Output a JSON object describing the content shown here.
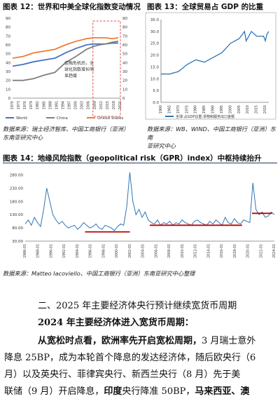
{
  "fig12": {
    "title": "图表 12：世界和中美全球化指数变动情况",
    "annotation": [
      "金融危机后，全",
      "球化指数增长明",
      "显趋缓"
    ],
    "legend": [
      "World",
      "China",
      "United States"
    ],
    "source": [
      "数据来源：瑞士经济智库、中国工商银行（亚洲）",
      "东南亚研究中心"
    ]
  },
  "fig13": {
    "title": "图表 13：全球贸易占 GDP 的比重",
    "legend_label": "全球:占GDP比重:货物和服务出口金额",
    "source": [
      "数据来源：WB、WIND、中国工商银行（亚洲）东南",
      "亚研究中心"
    ]
  },
  "fig14": {
    "title": "图表 14：地缘风险指数（geopolitical risk（GPR）index）中枢持续抬升",
    "source": [
      "数据来源：Matteo Iacoviello、中国工商银行（亚洲）东南亚研究中心整理"
    ]
  },
  "text": {
    "heading": "二、2025 年主要经济体央行预计继续宽货币周期",
    "subheading": "2024 年主要经济体进入宽货币周期：",
    "p1_bold": "从宽松时点看，欧洲率先开启宽松周期，",
    "p1_rest": "3 月瑞士意外",
    "p2": "降息 25BP，成为本轮首个降息的发达经济体，随后欧央行（6",
    "p3": "月）以及英央行、菲律宾央行、新西兰央行（8 月）先于美",
    "p4_a": "联储（9 月）开启降息，",
    "p4_bold1": "印度",
    "p4_b": "央行降准 50BP，",
    "p4_bold2": "马来西亚、澳"
  },
  "chart_data": [
    {
      "type": "line",
      "x": [
        1970,
        1975,
        1980,
        1985,
        1990,
        1995,
        2000,
        2005,
        2008,
        2011,
        2014,
        2017,
        2020
      ],
      "series": [
        {
          "name": "World",
          "color": "#4472c4",
          "values": [
            36,
            38,
            41,
            43,
            45,
            51,
            56,
            60,
            61,
            61,
            61,
            62,
            62
          ]
        },
        {
          "name": "China",
          "color": "#7f7f7f",
          "values": [
            20,
            20,
            22,
            26,
            29,
            40,
            47,
            55,
            58,
            60,
            61,
            63,
            64
          ]
        },
        {
          "name": "United States",
          "color": "#ed7d31",
          "values": [
            45,
            47,
            51,
            53,
            55,
            60,
            64,
            67,
            68,
            68,
            68,
            67,
            68
          ]
        }
      ],
      "ylim": [
        0,
        90
      ],
      "yticks": [
        0,
        10,
        20,
        30,
        40,
        50,
        60,
        70,
        80,
        90
      ],
      "xtick_labels": [
        "1970",
        "1973",
        "1976",
        "1979",
        "1982",
        "1985",
        "1988",
        "1991",
        "1994",
        "1997",
        "2000",
        "2003",
        "2006",
        "2009",
        "2012",
        "2015",
        "2018",
        "2021"
      ],
      "highlight_range": [
        2008,
        2021
      ]
    },
    {
      "type": "line",
      "x": [
        1960,
        1965,
        1970,
        1975,
        1980,
        1985,
        1990,
        1995,
        2000,
        2005,
        2008,
        2009,
        2012,
        2015,
        2019,
        2020,
        2021,
        2022
      ],
      "series": [
        {
          "name": "全球:占GDP比重:货物和服务出口金额",
          "color": "#2e75b6",
          "values": [
            12,
            12,
            13,
            16,
            18,
            17,
            19,
            21,
            25,
            27,
            30,
            26,
            30,
            28,
            28,
            26,
            29,
            30
          ]
        }
      ],
      "ylim": [
        0,
        35
      ],
      "yticks": [
        0,
        5,
        10,
        15,
        20,
        25,
        30,
        35
      ],
      "xtick_labels": [
        "1960",
        "1965",
        "1970",
        "1975",
        "1980",
        "1985",
        "1990",
        "1995",
        "2000",
        "2005",
        "2010",
        "2015",
        "2020"
      ]
    },
    {
      "type": "line",
      "x_labels": [
        "1986-01",
        "1988-01",
        "1990-01",
        "1992-01",
        "1994-01",
        "1996-01",
        "1998-01",
        "2000-01",
        "2002-01",
        "2004-01",
        "2006-01",
        "2008-01",
        "2010-01",
        "2012-01",
        "2014-01",
        "2016-01",
        "2018-01",
        "2020-01",
        "2022-01",
        "2024-01"
      ],
      "series": [
        {
          "name": "GPR",
          "color": "#2e75b6",
          "values": [
            95,
            110,
            90,
            120,
            100,
            85,
            150,
            230,
            180,
            130,
            110,
            95,
            105,
            90,
            80,
            85,
            90,
            75,
            85,
            100,
            90,
            80,
            85,
            95,
            80,
            75,
            90,
            85,
            80,
            70,
            85,
            95,
            90,
            160,
            290,
            180,
            130,
            150,
            120,
            140,
            110,
            100,
            95,
            110,
            90,
            100,
            95,
            105,
            90,
            100,
            95,
            110,
            100,
            95,
            90,
            105,
            110,
            100,
            95,
            90,
            105,
            95,
            110,
            100,
            90,
            120,
            100,
            95,
            115,
            100,
            95,
            110,
            105,
            100,
            250,
            150,
            130,
            140,
            120,
            125,
            140,
            130
          ]
        }
      ],
      "means": [
        {
          "label": "",
          "color": "#c00000",
          "value": 65
        },
        {
          "label": "",
          "color": "#c00000",
          "value": 90
        },
        {
          "label": "",
          "color": "#c00000",
          "value": 135
        }
      ],
      "ylim": [
        30,
        300
      ],
      "yticks": [
        30,
        80,
        130,
        180,
        230,
        280
      ]
    }
  ]
}
